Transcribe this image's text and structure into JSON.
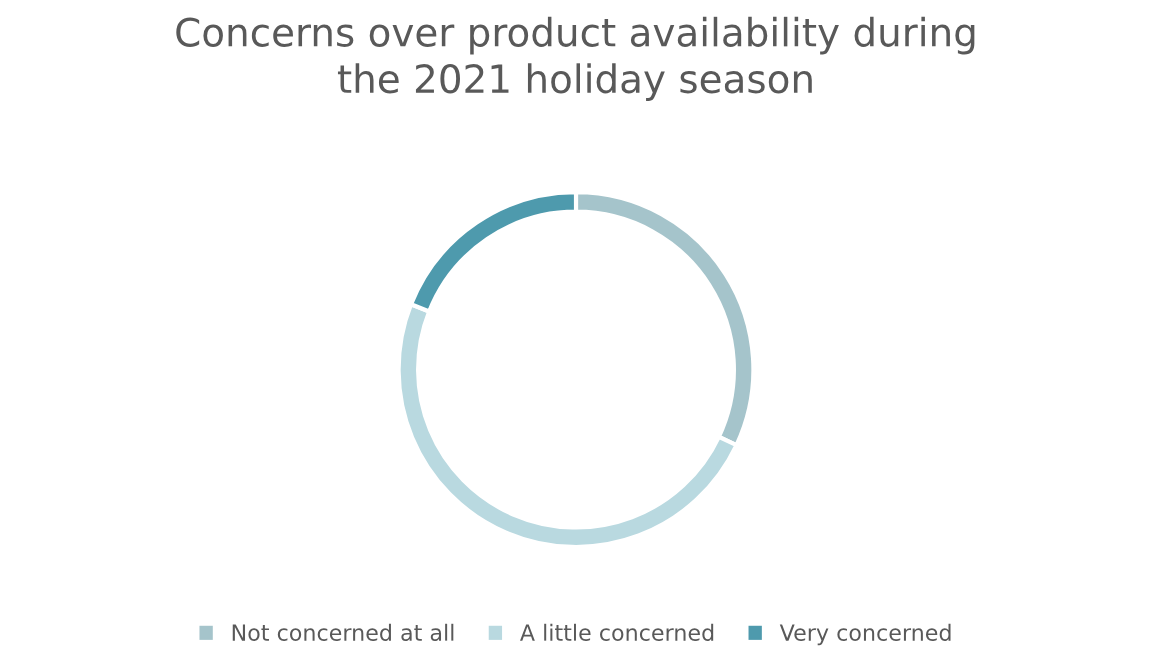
{
  "chart_data": {
    "type": "donut",
    "title": "Concerns over product availability during\nthe 2021 holiday season",
    "categories": [
      "Not concerned at all",
      "A little concerned",
      "Very concerned"
    ],
    "values": [
      32,
      49,
      19
    ],
    "colors": [
      "#a5c4cb",
      "#b9d9e0",
      "#4e9aad"
    ],
    "legend": "bottom"
  }
}
